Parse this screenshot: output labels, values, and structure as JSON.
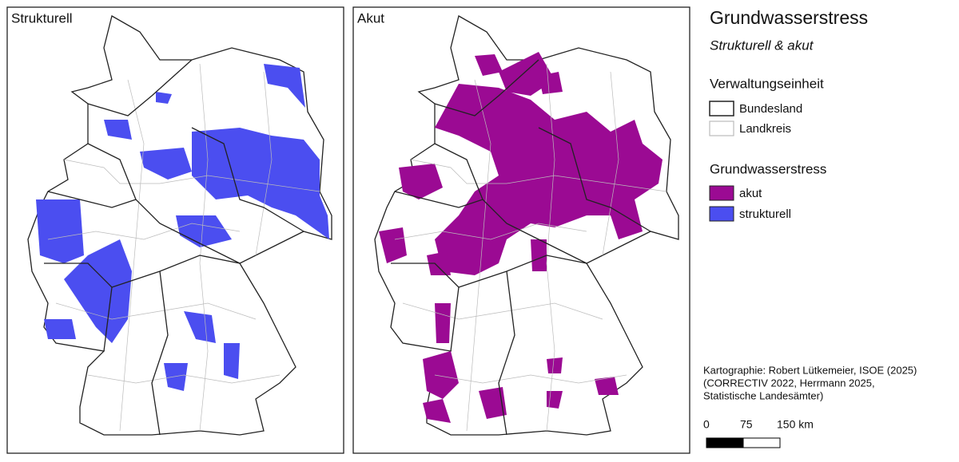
{
  "panels": [
    {
      "title": "Strukturell"
    },
    {
      "title": "Akut"
    }
  ],
  "legend": {
    "title": "Grundwasserstress",
    "subtitle": "Strukturell & akut",
    "admin_title": "Verwaltungseinheit",
    "admin_items": [
      "Bundesland",
      "Landkreis"
    ],
    "stress_title": "Grundwasserstress",
    "stress_items": [
      "akut",
      "strukturell"
    ]
  },
  "credits": [
    "Kartographie: Robert Lütkemeier, ISOE (2025)",
    "(CORRECTIV 2022, Herrmann 2025,",
    "Statistische Landesämter)"
  ],
  "scale_bar": {
    "ticks": [
      0,
      75,
      {
        "value": 150,
        "label": "150 km"
      }
    ]
  }
}
